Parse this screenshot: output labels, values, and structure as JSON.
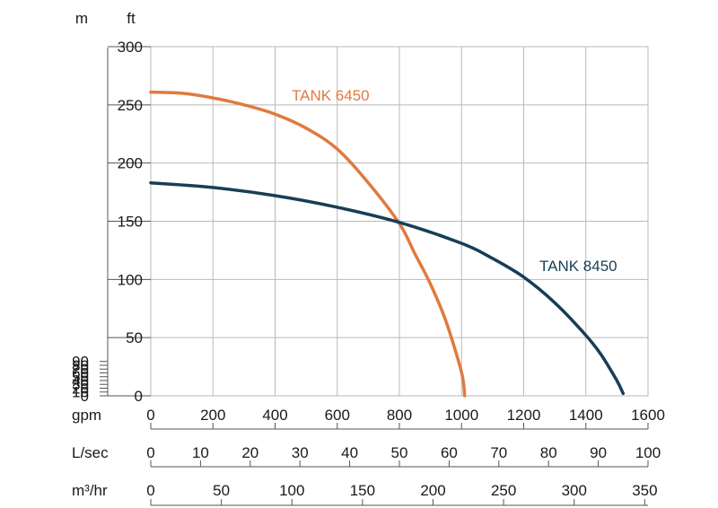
{
  "chart_data": {
    "type": "line",
    "x_unit": "gpm",
    "xlim": [
      0,
      1600
    ],
    "y_unit_left": "m",
    "y_unit_right": "ft",
    "ylim_ft": [
      0,
      300
    ],
    "grid": true,
    "x_ticks": [
      "0",
      "200",
      "400",
      "600",
      "800",
      "1000",
      "1200",
      "1400",
      "1600"
    ],
    "ft_ticks": [
      "0",
      "50",
      "100",
      "150",
      "200",
      "250",
      "300"
    ],
    "m_ticks": [
      "0",
      "10",
      "20",
      "30",
      "40",
      "50",
      "60",
      "70",
      "80",
      "90"
    ],
    "secondary_axes": [
      {
        "unit": "L/sec",
        "ticks": [
          "0",
          "10",
          "20",
          "30",
          "40",
          "50",
          "60",
          "70",
          "80",
          "90",
          "100"
        ]
      },
      {
        "unit": "m³/hr",
        "ticks": [
          "0",
          "50",
          "100",
          "150",
          "200",
          "250",
          "300",
          "350"
        ]
      }
    ],
    "series": [
      {
        "name": "TANK 6450",
        "color": "#e07a3f",
        "x": [
          0,
          100,
          200,
          300,
          400,
          500,
          600,
          700,
          800,
          850,
          900,
          950,
          1000,
          1010
        ],
        "y": [
          261,
          260,
          256,
          250,
          242,
          230,
          212,
          183,
          148,
          122,
          96,
          64,
          20,
          0
        ]
      },
      {
        "name": "TANK 8450",
        "color": "#173e57",
        "x": [
          0,
          200,
          400,
          600,
          800,
          1000,
          1100,
          1200,
          1300,
          1400,
          1450,
          1500,
          1520
        ],
        "y": [
          183,
          179,
          172,
          162,
          149,
          131,
          118,
          102,
          80,
          52,
          35,
          13,
          2
        ]
      }
    ]
  }
}
